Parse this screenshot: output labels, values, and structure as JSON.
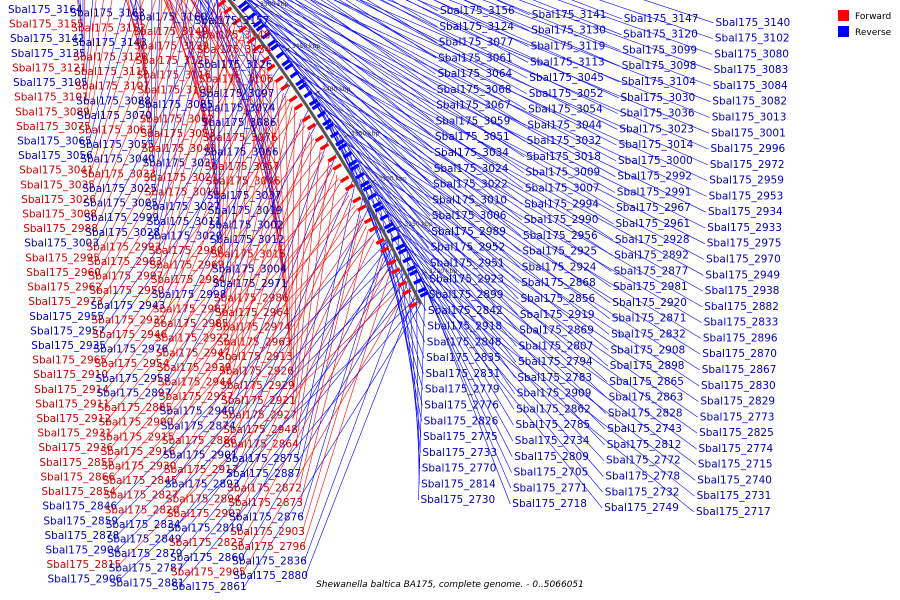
{
  "caption": "Shewanella baltica BA175, complete genome. - 0..5066051",
  "legend": [
    {
      "label": "Forward",
      "color": "#ff0000"
    },
    {
      "label": "Reverse",
      "color": "#0000ff"
    }
  ],
  "colors": {
    "forward_text": "#cc0000",
    "reverse_text": "#0000bb",
    "backbone": "#444444"
  },
  "ticks": [
    "3750 kbp",
    "3700 kbp",
    "3650 kbp",
    "3600 kbp",
    "3550 kbp",
    "3500 kbp",
    "3450 kbp",
    "3400 kbp",
    "3350 kbp",
    "3300 kbp",
    "3250 kbp",
    "3200 kbp"
  ],
  "left_labels": [
    {
      "t": "Sbal175_3164",
      "s": "r"
    },
    {
      "t": "Sbal175_3163",
      "s": "r"
    },
    {
      "t": "Sbal175_3160",
      "s": "r"
    },
    {
      "t": "Sbal175_3157",
      "s": "r"
    },
    {
      "t": "Sbal175_3155",
      "s": "f"
    },
    {
      "t": "Sbal175_3152",
      "s": "f"
    },
    {
      "t": "Sbal175_3149",
      "s": "f"
    },
    {
      "t": "Sbal175_3148",
      "s": "f"
    },
    {
      "t": "Sbal175_3142",
      "s": "r"
    },
    {
      "t": "Sbal175_3143",
      "s": "r"
    },
    {
      "t": "Sbal175_3139",
      "s": "f"
    },
    {
      "t": "Sbal175_3134",
      "s": "f"
    },
    {
      "t": "Sbal175_3135",
      "s": "r"
    },
    {
      "t": "Sbal175_3128",
      "s": "f"
    },
    {
      "t": "Sbal175_3125",
      "s": "f"
    },
    {
      "t": "Sbal175_3126",
      "s": "r"
    },
    {
      "t": "Sbal175_3121",
      "s": "f"
    },
    {
      "t": "Sbal175_3115",
      "s": "f"
    },
    {
      "t": "Sbal175_3116",
      "s": "f"
    },
    {
      "t": "Sbal175_3106",
      "s": "f"
    },
    {
      "t": "Sbal175_3105",
      "s": "r"
    },
    {
      "t": "Sbal175_3107",
      "s": "f"
    },
    {
      "t": "Sbal175_3100",
      "s": "f"
    },
    {
      "t": "Sbal175_3097",
      "s": "r"
    },
    {
      "t": "Sbal175_3101",
      "s": "f"
    },
    {
      "t": "Sbal175_3088",
      "s": "r"
    },
    {
      "t": "Sbal175_3085",
      "s": "r"
    },
    {
      "t": "Sbal175_3074",
      "s": "r"
    },
    {
      "t": "Sbal175_3089",
      "s": "f"
    },
    {
      "t": "Sbal175_3070",
      "s": "r"
    },
    {
      "t": "Sbal175_3062",
      "s": "f"
    },
    {
      "t": "Sbal175_3086",
      "s": "r"
    },
    {
      "t": "Sbal175_3075",
      "s": "f"
    },
    {
      "t": "Sbal175_3063",
      "s": "f"
    },
    {
      "t": "Sbal175_3053",
      "s": "f"
    },
    {
      "t": "Sbal175_3076",
      "s": "f"
    },
    {
      "t": "Sbal175_3065",
      "s": "r"
    },
    {
      "t": "Sbal175_3055",
      "s": "r"
    },
    {
      "t": "Sbal175_3043",
      "s": "f"
    },
    {
      "t": "Sbal175_3066",
      "s": "r"
    },
    {
      "t": "Sbal175_3056",
      "s": "r"
    },
    {
      "t": "Sbal175_3040",
      "s": "r"
    },
    {
      "t": "Sbal175_3031",
      "s": "r"
    },
    {
      "t": "Sbal175_3057",
      "s": "f"
    },
    {
      "t": "Sbal175_3041",
      "s": "f"
    },
    {
      "t": "Sbal175_3033",
      "s": "f"
    },
    {
      "t": "Sbal175_3021",
      "s": "f"
    },
    {
      "t": "Sbal175_3046",
      "s": "f"
    },
    {
      "t": "Sbal175_3035",
      "s": "f"
    },
    {
      "t": "Sbal175_3025",
      "s": "r"
    },
    {
      "t": "Sbal175_3016",
      "s": "f"
    },
    {
      "t": "Sbal175_3037",
      "s": "r"
    },
    {
      "t": "Sbal175_3026",
      "s": "f"
    },
    {
      "t": "Sbal175_3005",
      "s": "r"
    },
    {
      "t": "Sbal175_3027",
      "s": "r"
    },
    {
      "t": "Sbal175_3019",
      "s": "r"
    },
    {
      "t": "Sbal175_3008",
      "s": "f"
    },
    {
      "t": "Sbal175_2999",
      "s": "r"
    },
    {
      "t": "Sbal175_3011",
      "s": "r"
    },
    {
      "t": "Sbal175_3002",
      "s": "r"
    },
    {
      "t": "Sbal175_2988",
      "s": "f"
    },
    {
      "t": "Sbal175_3028",
      "s": "r"
    },
    {
      "t": "Sbal175_3020",
      "s": "r"
    },
    {
      "t": "Sbal175_3012",
      "s": "r"
    },
    {
      "t": "Sbal175_3003",
      "s": "r"
    },
    {
      "t": "Sbal175_2993",
      "s": "f"
    },
    {
      "t": "Sbal175_2980",
      "s": "f"
    },
    {
      "t": "Sbal175_3015",
      "s": "f"
    },
    {
      "t": "Sbal175_2995",
      "s": "f"
    },
    {
      "t": "Sbal175_2983",
      "s": "f"
    },
    {
      "t": "Sbal175_2969",
      "s": "f"
    },
    {
      "t": "Sbal175_3004",
      "s": "r"
    },
    {
      "t": "Sbal175_2960",
      "s": "f"
    },
    {
      "t": "Sbal175_2997",
      "s": "f"
    },
    {
      "t": "Sbal175_2984",
      "s": "f"
    },
    {
      "t": "Sbal175_2971",
      "s": "r"
    },
    {
      "t": "Sbal175_2962",
      "s": "f"
    },
    {
      "t": "Sbal175_2950",
      "s": "f"
    },
    {
      "t": "Sbal175_2998",
      "s": "r"
    },
    {
      "t": "Sbal175_2986",
      "s": "f"
    },
    {
      "t": "Sbal175_2973",
      "s": "f"
    },
    {
      "t": "Sbal175_2943",
      "s": "r"
    },
    {
      "t": "Sbal175_2982",
      "s": "f"
    },
    {
      "t": "Sbal175_2964",
      "s": "f"
    },
    {
      "t": "Sbal175_2955",
      "s": "r"
    },
    {
      "t": "Sbal175_2932",
      "s": "f"
    },
    {
      "t": "Sbal175_2985",
      "s": "f"
    },
    {
      "t": "Sbal175_2974",
      "s": "f"
    },
    {
      "t": "Sbal175_2957",
      "s": "r"
    },
    {
      "t": "Sbal175_2946",
      "s": "f"
    },
    {
      "t": "Sbal175_2922",
      "s": "f"
    },
    {
      "t": "Sbal175_2963",
      "s": "f"
    },
    {
      "t": "Sbal175_2935",
      "s": "r"
    },
    {
      "t": "Sbal175_2976",
      "s": "r"
    },
    {
      "t": "Sbal175_2947",
      "s": "f"
    },
    {
      "t": "Sbal175_2913",
      "s": "f"
    },
    {
      "t": "Sbal175_2965",
      "s": "f"
    },
    {
      "t": "Sbal175_2954",
      "s": "f"
    },
    {
      "t": "Sbal175_2939",
      "s": "f"
    },
    {
      "t": "Sbal175_2926",
      "s": "f"
    },
    {
      "t": "Sbal175_2910",
      "s": "f"
    },
    {
      "t": "Sbal175_2958",
      "s": "r"
    },
    {
      "t": "Sbal175_2944",
      "s": "f"
    },
    {
      "t": "Sbal175_2929",
      "s": "f"
    },
    {
      "t": "Sbal175_2914",
      "s": "f"
    },
    {
      "t": "Sbal175_2897",
      "s": "r"
    },
    {
      "t": "Sbal175_2937",
      "s": "f"
    },
    {
      "t": "Sbal175_2921",
      "s": "f"
    },
    {
      "t": "Sbal175_2911",
      "s": "f"
    },
    {
      "t": "Sbal175_2885",
      "s": "f"
    },
    {
      "t": "Sbal175_2940",
      "s": "r"
    },
    {
      "t": "Sbal175_2927",
      "s": "f"
    },
    {
      "t": "Sbal175_2912",
      "s": "f"
    },
    {
      "t": "Sbal175_2900",
      "s": "f"
    },
    {
      "t": "Sbal175_2874",
      "s": "r"
    },
    {
      "t": "Sbal175_2948",
      "s": "f"
    },
    {
      "t": "Sbal175_2931",
      "s": "f"
    },
    {
      "t": "Sbal175_2915",
      "s": "f"
    },
    {
      "t": "Sbal175_2886",
      "s": "f"
    },
    {
      "t": "Sbal175_2864",
      "s": "f"
    },
    {
      "t": "Sbal175_2936",
      "s": "f"
    },
    {
      "t": "Sbal175_2916",
      "s": "f"
    },
    {
      "t": "Sbal175_2901",
      "s": "r"
    },
    {
      "t": "Sbal175_2875",
      "s": "r"
    },
    {
      "t": "Sbal175_2855",
      "s": "f"
    },
    {
      "t": "Sbal175_2930",
      "s": "f"
    },
    {
      "t": "Sbal175_2917",
      "s": "f"
    },
    {
      "t": "Sbal175_2887",
      "s": "r"
    },
    {
      "t": "Sbal175_2866",
      "s": "f"
    },
    {
      "t": "Sbal175_2845",
      "s": "f"
    },
    {
      "t": "Sbal175_2893",
      "s": "r"
    },
    {
      "t": "Sbal175_2872",
      "s": "f"
    },
    {
      "t": "Sbal175_2854",
      "s": "f"
    },
    {
      "t": "Sbal175_2827",
      "s": "f"
    },
    {
      "t": "Sbal175_2894",
      "s": "f"
    },
    {
      "t": "Sbal175_2873",
      "s": "f"
    },
    {
      "t": "Sbal175_2846",
      "s": "r"
    },
    {
      "t": "Sbal175_2820",
      "s": "f"
    },
    {
      "t": "Sbal175_2902",
      "s": "f"
    },
    {
      "t": "Sbal175_2876",
      "s": "r"
    },
    {
      "t": "Sbal175_2859",
      "s": "r"
    },
    {
      "t": "Sbal175_2834",
      "s": "r"
    },
    {
      "t": "Sbal175_2810",
      "s": "r"
    },
    {
      "t": "Sbal175_2903",
      "s": "f"
    },
    {
      "t": "Sbal175_2878",
      "s": "r"
    },
    {
      "t": "Sbal175_2849",
      "s": "r"
    },
    {
      "t": "Sbal175_2823",
      "s": "f"
    },
    {
      "t": "Sbal175_2796",
      "s": "f"
    },
    {
      "t": "Sbal175_2904",
      "s": "r"
    },
    {
      "t": "Sbal175_2879",
      "s": "r"
    },
    {
      "t": "Sbal175_2860",
      "s": "r"
    },
    {
      "t": "Sbal175_2836",
      "s": "r"
    },
    {
      "t": "Sbal175_2815",
      "s": "f"
    },
    {
      "t": "Sbal175_2787",
      "s": "r"
    },
    {
      "t": "Sbal175_2905",
      "s": "f"
    },
    {
      "t": "Sbal175_2880",
      "s": "r"
    },
    {
      "t": "Sbal175_2906",
      "s": "r"
    },
    {
      "t": "Sbal175_2881",
      "s": "r"
    },
    {
      "t": "Sbal175_2861",
      "s": "r"
    }
  ],
  "right_labels": [
    {
      "t": "Sbal175_3156"
    },
    {
      "t": "Sbal175_3141"
    },
    {
      "t": "Sbal175_3147"
    },
    {
      "t": "Sbal175_3140"
    },
    {
      "t": "Sbal175_3124"
    },
    {
      "t": "Sbal175_3130"
    },
    {
      "t": "Sbal175_3120"
    },
    {
      "t": "Sbal175_3102"
    },
    {
      "t": "Sbal175_3077"
    },
    {
      "t": "Sbal175_3119"
    },
    {
      "t": "Sbal175_3099"
    },
    {
      "t": "Sbal175_3080"
    },
    {
      "t": "Sbal175_3061"
    },
    {
      "t": "Sbal175_3113"
    },
    {
      "t": "Sbal175_3098"
    },
    {
      "t": "Sbal175_3083"
    },
    {
      "t": "Sbal175_3064"
    },
    {
      "t": "Sbal175_3045"
    },
    {
      "t": "Sbal175_3104"
    },
    {
      "t": "Sbal175_3084"
    },
    {
      "t": "Sbal175_3068"
    },
    {
      "t": "Sbal175_3052"
    },
    {
      "t": "Sbal175_3030"
    },
    {
      "t": "Sbal175_3082"
    },
    {
      "t": "Sbal175_3067"
    },
    {
      "t": "Sbal175_3054"
    },
    {
      "t": "Sbal175_3036"
    },
    {
      "t": "Sbal175_3013"
    },
    {
      "t": "Sbal175_3059"
    },
    {
      "t": "Sbal175_3044"
    },
    {
      "t": "Sbal175_3023"
    },
    {
      "t": "Sbal175_3001"
    },
    {
      "t": "Sbal175_3051"
    },
    {
      "t": "Sbal175_3032"
    },
    {
      "t": "Sbal175_3014"
    },
    {
      "t": "Sbal175_2996"
    },
    {
      "t": "Sbal175_3034"
    },
    {
      "t": "Sbal175_3018"
    },
    {
      "t": "Sbal175_3000"
    },
    {
      "t": "Sbal175_2972"
    },
    {
      "t": "Sbal175_3024"
    },
    {
      "t": "Sbal175_3009"
    },
    {
      "t": "Sbal175_2992"
    },
    {
      "t": "Sbal175_2959"
    },
    {
      "t": "Sbal175_3022"
    },
    {
      "t": "Sbal175_3007"
    },
    {
      "t": "Sbal175_2991"
    },
    {
      "t": "Sbal175_2953"
    },
    {
      "t": "Sbal175_3010"
    },
    {
      "t": "Sbal175_2994"
    },
    {
      "t": "Sbal175_2967"
    },
    {
      "t": "Sbal175_2934"
    },
    {
      "t": "Sbal175_3006"
    },
    {
      "t": "Sbal175_2990"
    },
    {
      "t": "Sbal175_2961"
    },
    {
      "t": "Sbal175_2933"
    },
    {
      "t": "Sbal175_2989"
    },
    {
      "t": "Sbal175_2956"
    },
    {
      "t": "Sbal175_2928"
    },
    {
      "t": "Sbal175_2975"
    },
    {
      "t": "Sbal175_2952"
    },
    {
      "t": "Sbal175_2925"
    },
    {
      "t": "Sbal175_2892"
    },
    {
      "t": "Sbal175_2970"
    },
    {
      "t": "Sbal175_2951"
    },
    {
      "t": "Sbal175_2924"
    },
    {
      "t": "Sbal175_2877"
    },
    {
      "t": "Sbal175_2949"
    },
    {
      "t": "Sbal175_2923"
    },
    {
      "t": "Sbal175_2868"
    },
    {
      "t": "Sbal175_2981"
    },
    {
      "t": "Sbal175_2938"
    },
    {
      "t": "Sbal175_2899"
    },
    {
      "t": "Sbal175_2856"
    },
    {
      "t": "Sbal175_2920"
    },
    {
      "t": "Sbal175_2882"
    },
    {
      "t": "Sbal175_2842"
    },
    {
      "t": "Sbal175_2919"
    },
    {
      "t": "Sbal175_2871"
    },
    {
      "t": "Sbal175_2833"
    },
    {
      "t": "Sbal175_2918"
    },
    {
      "t": "Sbal175_2869"
    },
    {
      "t": "Sbal175_2832"
    },
    {
      "t": "Sbal175_2896"
    },
    {
      "t": "Sbal175_2848"
    },
    {
      "t": "Sbal175_2807"
    },
    {
      "t": "Sbal175_2908"
    },
    {
      "t": "Sbal175_2870"
    },
    {
      "t": "Sbal175_2835"
    },
    {
      "t": "Sbal175_2794"
    },
    {
      "t": "Sbal175_2898"
    },
    {
      "t": "Sbal175_2867"
    },
    {
      "t": "Sbal175_2831"
    },
    {
      "t": "Sbal175_2783"
    },
    {
      "t": "Sbal175_2865"
    },
    {
      "t": "Sbal175_2830"
    },
    {
      "t": "Sbal175_2779"
    },
    {
      "t": "Sbal175_2909"
    },
    {
      "t": "Sbal175_2863"
    },
    {
      "t": "Sbal175_2829"
    },
    {
      "t": "Sbal175_2776"
    },
    {
      "t": "Sbal175_2862"
    },
    {
      "t": "Sbal175_2828"
    },
    {
      "t": "Sbal175_2773"
    },
    {
      "t": "Sbal175_2826"
    },
    {
      "t": "Sbal175_2785"
    },
    {
      "t": "Sbal175_2743"
    },
    {
      "t": "Sbal175_2825"
    },
    {
      "t": "Sbal175_2775"
    },
    {
      "t": "Sbal175_2734"
    },
    {
      "t": "Sbal175_2812"
    },
    {
      "t": "Sbal175_2774"
    },
    {
      "t": "Sbal175_2733"
    },
    {
      "t": "Sbal175_2809"
    },
    {
      "t": "Sbal175_2772"
    },
    {
      "t": "Sbal175_2715"
    },
    {
      "t": "Sbal175_2770"
    },
    {
      "t": "Sbal175_2705"
    },
    {
      "t": "Sbal175_2778"
    },
    {
      "t": "Sbal175_2740"
    },
    {
      "t": "Sbal175_2814"
    },
    {
      "t": "Sbal175_2771"
    },
    {
      "t": "Sbal175_2732"
    },
    {
      "t": "Sbal175_2731"
    },
    {
      "t": "Sbal175_2730"
    },
    {
      "t": "Sbal175_2718"
    },
    {
      "t": "Sbal175_2749"
    },
    {
      "t": "Sbal175_2717"
    }
  ]
}
